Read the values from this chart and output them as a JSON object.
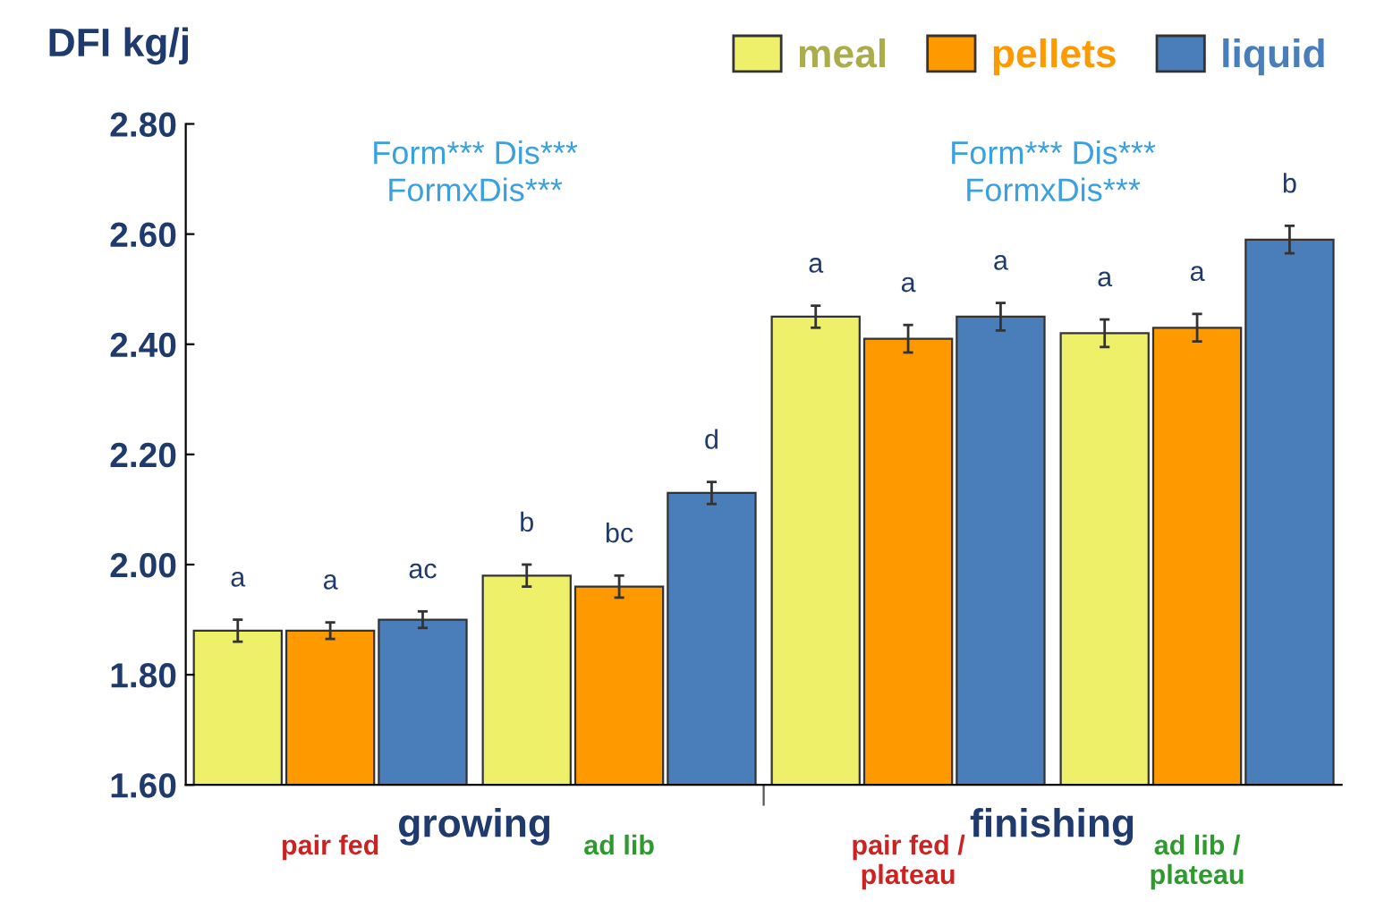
{
  "chart_data": {
    "type": "bar",
    "title": "DFI kg/j",
    "categories": [
      "pair fed",
      "ad lib",
      "pair fed /\nplateau",
      "ad lib /\nplateau"
    ],
    "series": [
      {
        "name": "meal",
        "color": "#eef06a",
        "values": [
          1.88,
          1.98,
          2.45,
          2.42
        ],
        "errors": [
          0.02,
          0.02,
          0.02,
          0.025
        ],
        "value_labels": [
          "a",
          "b",
          "a",
          "a"
        ]
      },
      {
        "name": "pellets",
        "color": "#ff9900",
        "values": [
          1.88,
          1.96,
          2.41,
          2.43
        ],
        "errors": [
          0.015,
          0.02,
          0.025,
          0.025
        ],
        "value_labels": [
          "a",
          "bc",
          "a",
          "a"
        ]
      },
      {
        "name": "liquid",
        "color": "#4a7ebb",
        "values": [
          1.9,
          2.13,
          2.45,
          2.59
        ],
        "errors": [
          0.015,
          0.02,
          0.025,
          0.025
        ],
        "value_labels": [
          "ac",
          "d",
          "a",
          "b"
        ]
      }
    ],
    "ylim": [
      1.6,
      2.8
    ],
    "yticks": [
      {
        "value": 1.6,
        "label": "1.60"
      },
      {
        "value": 1.8,
        "label": "1.80"
      },
      {
        "value": 2.0,
        "label": "2.00"
      },
      {
        "value": 2.2,
        "label": "2.20"
      },
      {
        "value": 2.4,
        "label": "2.40"
      },
      {
        "value": 2.6,
        "label": "2.60"
      },
      {
        "value": 2.8,
        "label": "2.80"
      }
    ],
    "annotations": [
      "Form*** Dis***\nFormxDis***",
      "Form*** Dis***\nFormxDis***",
      "growing",
      "finishing"
    ],
    "legend": "top right",
    "grid": false
  }
}
